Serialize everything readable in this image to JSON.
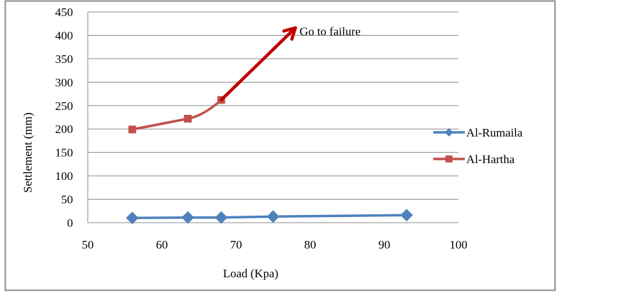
{
  "chart_data": {
    "type": "line",
    "title": "",
    "xlabel": "Load (Kpa)",
    "ylabel": "Settlement (mm)",
    "xlim": [
      50,
      100
    ],
    "ylim": [
      0,
      450
    ],
    "xticks": [
      50,
      60,
      70,
      80,
      90,
      100
    ],
    "yticks": [
      0,
      50,
      100,
      150,
      200,
      250,
      300,
      350,
      400,
      450
    ],
    "grid": "horizontal",
    "legend_position": "right",
    "series": [
      {
        "name": "Al-Rumaila",
        "color": "#4F81BD",
        "marker": "diamond",
        "x": [
          56,
          63.5,
          68,
          75,
          93
        ],
        "y": [
          10,
          11,
          11,
          13,
          16
        ]
      },
      {
        "name": "Al-Hartha",
        "color": "#C0504D",
        "marker": "square",
        "x": [
          56,
          63.5,
          68
        ],
        "y": [
          199,
          222,
          262
        ]
      }
    ],
    "annotation": {
      "text": "Go to failure",
      "arrow_color": "#C00000",
      "arrow_from": [
        68,
        262
      ],
      "arrow_to": [
        78,
        416
      ]
    }
  }
}
